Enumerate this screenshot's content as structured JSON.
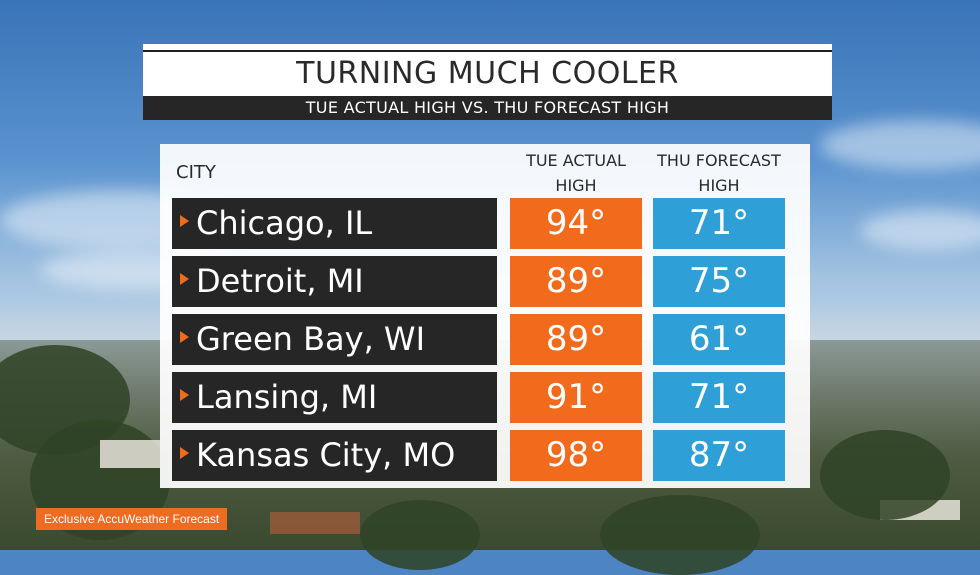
{
  "title": "TURNING MUCH COOLER",
  "subtitle": "TUE ACTUAL HIGH VS. THU FORECAST HIGH",
  "table": {
    "headers": {
      "city": "CITY",
      "tue": "TUE ACTUAL HIGH",
      "thu": "THU FORECAST HIGH"
    },
    "rows": [
      {
        "city": "Chicago, IL",
        "tue": "94°",
        "thu": "71°"
      },
      {
        "city": "Detroit, MI",
        "tue": "89°",
        "thu": "75°"
      },
      {
        "city": "Green Bay, WI",
        "tue": "89°",
        "thu": "61°"
      },
      {
        "city": "Lansing, MI",
        "tue": "91°",
        "thu": "71°"
      },
      {
        "city": "Kansas City, MO",
        "tue": "98°",
        "thu": "87°"
      }
    ]
  },
  "footer": {
    "label": "Exclusive AccuWeather Forecast"
  },
  "colors": {
    "tue_accent": "#f26a1b",
    "thu_accent": "#2f9fd8",
    "dark_band": "#262626"
  },
  "icons": {
    "row_marker": "triangle-right-icon"
  }
}
